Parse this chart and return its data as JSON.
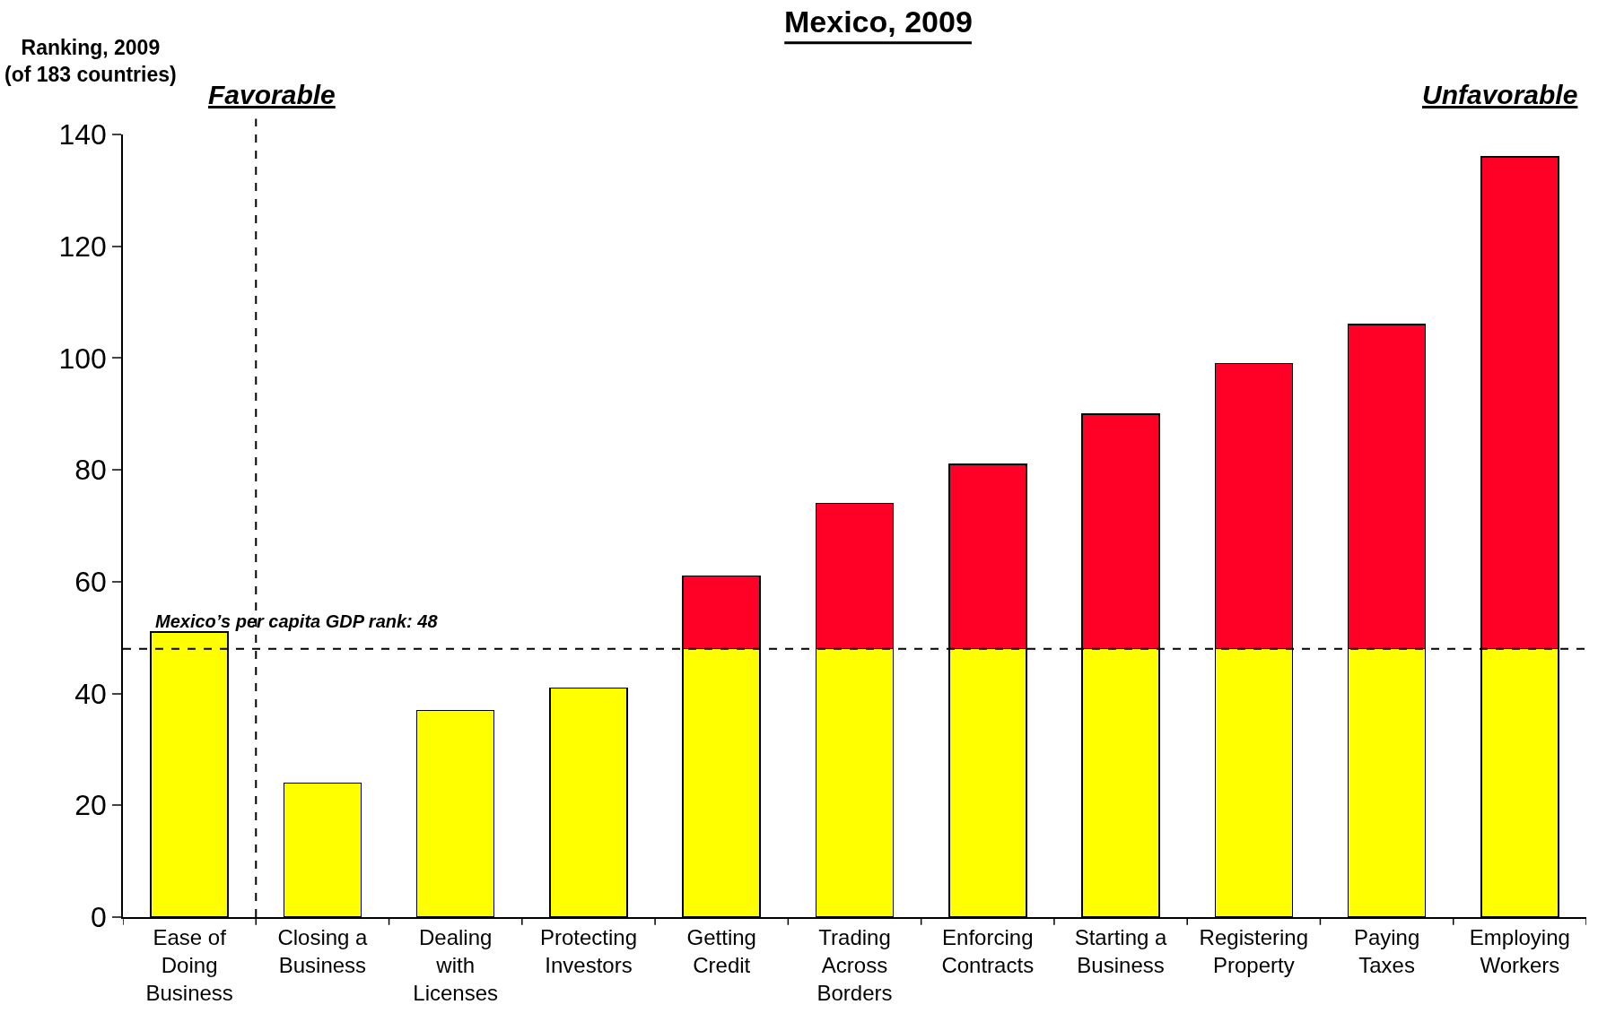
{
  "chart_data": {
    "type": "bar",
    "title": "Mexico, 2009",
    "ylabel": "Ranking, 2009\n(of 183 countries)",
    "categories": [
      "Ease of Doing Business",
      "Closing a Business",
      "Dealing with Licenses",
      "Protecting Investors",
      "Getting Credit",
      "Trading Across Borders",
      "Enforcing Contracts",
      "Starting a Business",
      "Registering Property",
      "Paying Taxes",
      "Employing Workers"
    ],
    "stacked": true,
    "series": [
      {
        "color": "#ffff00",
        "values": [
          51,
          24,
          37,
          41,
          48,
          48,
          48,
          48,
          48,
          48,
          48
        ]
      },
      {
        "color": "#ff0026",
        "values": [
          null,
          null,
          null,
          null,
          13,
          26,
          33,
          42,
          51,
          58,
          88
        ]
      }
    ],
    "ylim": [
      0,
      140
    ],
    "yticks": [
      0,
      20,
      40,
      60,
      80,
      100,
      120,
      140
    ],
    "ref_lines": [
      {
        "axis": "y",
        "value": 48,
        "label": "Mexico’s per capita GDP rank: 48",
        "line_style": "dashed",
        "color": "#000000"
      }
    ],
    "annotations": [
      "Favorable",
      "Unfavorable"
    ]
  }
}
